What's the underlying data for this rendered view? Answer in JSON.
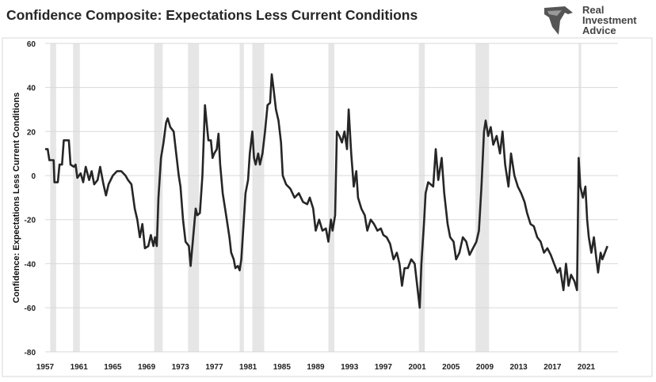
{
  "title": "Confidence Composite: Expectations Less Current Conditions",
  "logo": {
    "lines": [
      "Real",
      "Investment",
      "Advice"
    ],
    "icon": "eagle-icon"
  },
  "chart_data": {
    "type": "line",
    "title": "Confidence Composite: Expectations Less Current Conditions",
    "xlabel": "",
    "ylabel": "Confidence: Expectations Less Current Conditions",
    "xlim": [
      1957,
      2024.5
    ],
    "ylim": [
      -80,
      60
    ],
    "xticks": [
      "1957",
      "1961",
      "1965",
      "1969",
      "1973",
      "1977",
      "1981",
      "1985",
      "1989",
      "1993",
      "1997",
      "2001",
      "2005",
      "2009",
      "2013",
      "2017",
      "2021"
    ],
    "yticks": [
      "60",
      "40",
      "20",
      "0",
      "-20",
      "-40",
      "-60",
      "-80"
    ],
    "grid": "horizontal",
    "colors": {
      "line": "#262626",
      "recession": "#e6e6e6",
      "grid": "#d9d9d9"
    },
    "recessions": [
      [
        1957.6,
        1958.3
      ],
      [
        1960.3,
        1961.1
      ],
      [
        1969.9,
        1970.9
      ],
      [
        1973.9,
        1975.2
      ],
      [
        1980.0,
        1980.5
      ],
      [
        1981.5,
        1982.9
      ],
      [
        1990.5,
        1991.2
      ],
      [
        2001.2,
        2001.9
      ],
      [
        2007.9,
        2009.5
      ],
      [
        2020.1,
        2020.4
      ]
    ],
    "series": [
      {
        "points": [
          [
            1957.0,
            12
          ],
          [
            1957.3,
            12
          ],
          [
            1957.5,
            7
          ],
          [
            1958.0,
            7
          ],
          [
            1958.1,
            -3
          ],
          [
            1958.5,
            -3
          ],
          [
            1958.7,
            5
          ],
          [
            1959.0,
            5
          ],
          [
            1959.2,
            16
          ],
          [
            1959.8,
            16
          ],
          [
            1960.0,
            5
          ],
          [
            1960.4,
            4
          ],
          [
            1960.6,
            5
          ],
          [
            1960.8,
            -1
          ],
          [
            1961.2,
            1
          ],
          [
            1961.5,
            -3
          ],
          [
            1961.8,
            4
          ],
          [
            1962.2,
            -2
          ],
          [
            1962.5,
            2
          ],
          [
            1962.8,
            -4
          ],
          [
            1963.2,
            -2
          ],
          [
            1963.5,
            4
          ],
          [
            1963.9,
            -4
          ],
          [
            1964.2,
            -9
          ],
          [
            1964.5,
            -4
          ],
          [
            1965.0,
            0
          ],
          [
            1965.5,
            2
          ],
          [
            1966.0,
            2
          ],
          [
            1966.5,
            0
          ],
          [
            1966.8,
            -2
          ],
          [
            1967.2,
            -4
          ],
          [
            1967.6,
            -15
          ],
          [
            1967.9,
            -20
          ],
          [
            1968.2,
            -28
          ],
          [
            1968.5,
            -22
          ],
          [
            1968.8,
            -33
          ],
          [
            1969.2,
            -32
          ],
          [
            1969.5,
            -27
          ],
          [
            1969.8,
            -32
          ],
          [
            1970.0,
            -28
          ],
          [
            1970.2,
            -32
          ],
          [
            1970.4,
            -10
          ],
          [
            1970.7,
            8
          ],
          [
            1971.0,
            15
          ],
          [
            1971.3,
            24
          ],
          [
            1971.5,
            26
          ],
          [
            1971.8,
            22
          ],
          [
            1972.2,
            20
          ],
          [
            1972.5,
            10
          ],
          [
            1972.8,
            0
          ],
          [
            1973.0,
            -5
          ],
          [
            1973.3,
            -20
          ],
          [
            1973.6,
            -30
          ],
          [
            1974.0,
            -32
          ],
          [
            1974.2,
            -41
          ],
          [
            1974.5,
            -28
          ],
          [
            1974.8,
            -15
          ],
          [
            1975.0,
            -18
          ],
          [
            1975.3,
            -17
          ],
          [
            1975.6,
            0
          ],
          [
            1975.9,
            32
          ],
          [
            1976.1,
            24
          ],
          [
            1976.3,
            16
          ],
          [
            1976.6,
            16
          ],
          [
            1976.8,
            8
          ],
          [
            1977.0,
            10
          ],
          [
            1977.3,
            12
          ],
          [
            1977.5,
            19
          ],
          [
            1977.7,
            5
          ],
          [
            1978.0,
            -8
          ],
          [
            1978.4,
            -18
          ],
          [
            1978.8,
            -28
          ],
          [
            1979.0,
            -35
          ],
          [
            1979.3,
            -38
          ],
          [
            1979.5,
            -42
          ],
          [
            1979.8,
            -41
          ],
          [
            1980.0,
            -43
          ],
          [
            1980.2,
            -38
          ],
          [
            1980.5,
            -20
          ],
          [
            1980.7,
            -8
          ],
          [
            1981.0,
            -2
          ],
          [
            1981.2,
            10
          ],
          [
            1981.5,
            20
          ],
          [
            1981.7,
            8
          ],
          [
            1981.9,
            5
          ],
          [
            1982.2,
            10
          ],
          [
            1982.4,
            5
          ],
          [
            1982.7,
            10
          ],
          [
            1983.0,
            20
          ],
          [
            1983.3,
            32
          ],
          [
            1983.6,
            33
          ],
          [
            1983.8,
            46
          ],
          [
            1984.0,
            40
          ],
          [
            1984.3,
            30
          ],
          [
            1984.6,
            25
          ],
          [
            1984.9,
            15
          ],
          [
            1985.1,
            0
          ],
          [
            1985.5,
            -4
          ],
          [
            1986.0,
            -6
          ],
          [
            1986.5,
            -10
          ],
          [
            1987.0,
            -8
          ],
          [
            1987.5,
            -12
          ],
          [
            1988.0,
            -13
          ],
          [
            1988.3,
            -10
          ],
          [
            1988.7,
            -15
          ],
          [
            1989.0,
            -25
          ],
          [
            1989.4,
            -20
          ],
          [
            1989.8,
            -25
          ],
          [
            1990.2,
            -24
          ],
          [
            1990.5,
            -30
          ],
          [
            1990.8,
            -20
          ],
          [
            1991.0,
            -25
          ],
          [
            1991.3,
            -18
          ],
          [
            1991.5,
            20
          ],
          [
            1991.8,
            18
          ],
          [
            1992.1,
            15
          ],
          [
            1992.4,
            20
          ],
          [
            1992.7,
            12
          ],
          [
            1992.9,
            30
          ],
          [
            1993.2,
            10
          ],
          [
            1993.5,
            -5
          ],
          [
            1993.8,
            2
          ],
          [
            1994.0,
            -10
          ],
          [
            1994.4,
            -15
          ],
          [
            1994.8,
            -18
          ],
          [
            1995.1,
            -25
          ],
          [
            1995.5,
            -20
          ],
          [
            1995.9,
            -22
          ],
          [
            1996.3,
            -25
          ],
          [
            1996.7,
            -24
          ],
          [
            1997.0,
            -27
          ],
          [
            1997.4,
            -28
          ],
          [
            1997.8,
            -31
          ],
          [
            1998.2,
            -38
          ],
          [
            1998.6,
            -35
          ],
          [
            1998.9,
            -40
          ],
          [
            1999.2,
            -50
          ],
          [
            1999.5,
            -42
          ],
          [
            1999.9,
            -42
          ],
          [
            2000.3,
            -38
          ],
          [
            2000.7,
            -40
          ],
          [
            2001.0,
            -50
          ],
          [
            2001.3,
            -60
          ],
          [
            2001.5,
            -40
          ],
          [
            2001.8,
            -22
          ],
          [
            2002.0,
            -8
          ],
          [
            2002.3,
            -3
          ],
          [
            2002.6,
            -4
          ],
          [
            2002.9,
            -5
          ],
          [
            2003.2,
            12
          ],
          [
            2003.5,
            -2
          ],
          [
            2003.9,
            8
          ],
          [
            2004.2,
            -8
          ],
          [
            2004.6,
            -22
          ],
          [
            2004.9,
            -28
          ],
          [
            2005.3,
            -30
          ],
          [
            2005.6,
            -38
          ],
          [
            2006.0,
            -35
          ],
          [
            2006.4,
            -28
          ],
          [
            2006.8,
            -30
          ],
          [
            2007.2,
            -36
          ],
          [
            2007.6,
            -33
          ],
          [
            2008.0,
            -30
          ],
          [
            2008.3,
            -25
          ],
          [
            2008.6,
            -5
          ],
          [
            2008.9,
            20
          ],
          [
            2009.1,
            25
          ],
          [
            2009.4,
            18
          ],
          [
            2009.7,
            22
          ],
          [
            2010.0,
            14
          ],
          [
            2010.4,
            18
          ],
          [
            2010.8,
            10
          ],
          [
            2011.1,
            20
          ],
          [
            2011.4,
            5
          ],
          [
            2011.8,
            -5
          ],
          [
            2012.1,
            10
          ],
          [
            2012.5,
            0
          ],
          [
            2012.9,
            -5
          ],
          [
            2013.3,
            -8
          ],
          [
            2013.7,
            -12
          ],
          [
            2014.0,
            -17
          ],
          [
            2014.4,
            -22
          ],
          [
            2014.8,
            -23
          ],
          [
            2015.2,
            -28
          ],
          [
            2015.6,
            -30
          ],
          [
            2016.0,
            -35
          ],
          [
            2016.4,
            -33
          ],
          [
            2016.8,
            -36
          ],
          [
            2017.2,
            -40
          ],
          [
            2017.6,
            -44
          ],
          [
            2017.9,
            -42
          ],
          [
            2018.3,
            -52
          ],
          [
            2018.6,
            -40
          ],
          [
            2018.9,
            -50
          ],
          [
            2019.2,
            -45
          ],
          [
            2019.6,
            -48
          ],
          [
            2019.9,
            -52
          ],
          [
            2020.1,
            8
          ],
          [
            2020.3,
            -5
          ],
          [
            2020.6,
            -10
          ],
          [
            2020.9,
            -5
          ],
          [
            2021.1,
            -20
          ],
          [
            2021.3,
            -28
          ],
          [
            2021.6,
            -35
          ],
          [
            2021.9,
            -28
          ],
          [
            2022.2,
            -38
          ],
          [
            2022.4,
            -44
          ],
          [
            2022.7,
            -35
          ],
          [
            2022.9,
            -38
          ],
          [
            2023.2,
            -35
          ],
          [
            2023.5,
            -32
          ]
        ]
      }
    ]
  }
}
